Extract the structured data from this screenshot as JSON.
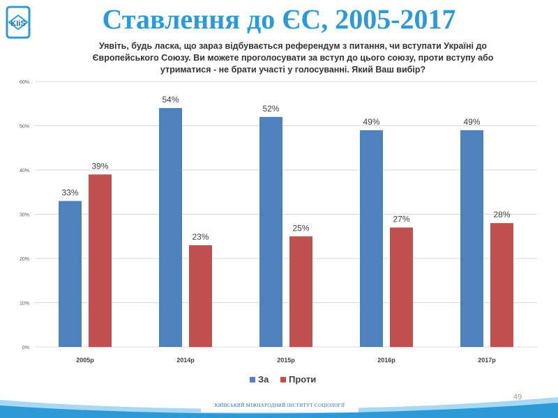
{
  "header": {
    "logo_text": "KIiS",
    "title": "Ставлення до ЄС, 2005-2017",
    "question_lines": [
      "Уявіть, будь ласка, що зараз відбувається референдум з питання, чи вступати Україні до",
      "Європейського Союзу. Ви можете проголосувати за вступ до цього союзу, проти вступу або",
      "утриматися - не брати участі у голосуванні. Який Ваш вибір?"
    ]
  },
  "chart_data": {
    "type": "bar",
    "categories": [
      "2005р",
      "2014р",
      "2015р",
      "2016р",
      "2017р"
    ],
    "series": [
      {
        "name": "За",
        "color": "#4f81bd",
        "values": [
          33,
          54,
          52,
          49,
          49
        ]
      },
      {
        "name": "Проти",
        "color": "#c0504d",
        "values": [
          39,
          23,
          25,
          27,
          28
        ]
      }
    ],
    "ylim": [
      0,
      60
    ],
    "yticks": [
      0,
      10,
      20,
      30,
      40,
      50,
      60
    ],
    "ytick_labels": [
      "0%",
      "10%",
      "20%",
      "30%",
      "40%",
      "50%",
      "60%"
    ],
    "value_suffix": "%",
    "grid": true,
    "legend_position": "bottom-center"
  },
  "footer": {
    "page_number": "49",
    "org_text": "Київський міжнародний інститут соціології"
  },
  "colors": {
    "title": "#2b9ad6",
    "footer_wave": "#2b9ad6",
    "footer_wave_light": "#a9d8f2"
  }
}
